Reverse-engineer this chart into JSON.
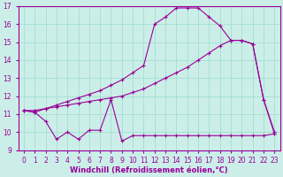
{
  "background_color": "#cceee8",
  "line_color": "#990099",
  "xlabel": "Windchill (Refroidissement éolien,°C)",
  "xlim": [
    -0.5,
    23.5
  ],
  "ylim": [
    9,
    17
  ],
  "yticks": [
    9,
    10,
    11,
    12,
    13,
    14,
    15,
    16,
    17
  ],
  "xticks": [
    0,
    1,
    2,
    3,
    4,
    5,
    6,
    7,
    8,
    9,
    10,
    11,
    12,
    13,
    14,
    15,
    16,
    17,
    18,
    19,
    20,
    21,
    22,
    23
  ],
  "grid_color": "#99ddcc",
  "series1_x": [
    0,
    1,
    2,
    3,
    4,
    5,
    6,
    7,
    8,
    9,
    10,
    11,
    12,
    13,
    14,
    15,
    16,
    17,
    18,
    19,
    20,
    21,
    22,
    23
  ],
  "series1_y": [
    11.2,
    11.1,
    10.6,
    9.6,
    10.0,
    9.6,
    10.1,
    10.1,
    11.8,
    9.5,
    9.8,
    9.8,
    9.8,
    9.8,
    9.8,
    9.8,
    9.8,
    9.8,
    9.8,
    9.8,
    9.8,
    9.8,
    9.8,
    9.9
  ],
  "series2_x": [
    0,
    1,
    2,
    3,
    4,
    5,
    6,
    7,
    8,
    9,
    10,
    11,
    12,
    13,
    14,
    15,
    16,
    17,
    18,
    19,
    20,
    21,
    22,
    23
  ],
  "series2_y": [
    11.2,
    11.1,
    11.3,
    11.4,
    11.5,
    11.6,
    11.7,
    11.8,
    11.9,
    12.0,
    12.2,
    12.4,
    12.7,
    13.0,
    13.3,
    13.6,
    14.0,
    14.4,
    14.8,
    15.1,
    15.1,
    14.9,
    11.8,
    10.0
  ],
  "series3_x": [
    0,
    1,
    2,
    3,
    4,
    5,
    6,
    7,
    8,
    9,
    10,
    11,
    12,
    13,
    14,
    15,
    16,
    17,
    18,
    19,
    20,
    21,
    22,
    23
  ],
  "series3_y": [
    11.2,
    11.2,
    11.3,
    11.5,
    11.7,
    11.9,
    12.1,
    12.3,
    12.6,
    12.9,
    13.3,
    13.7,
    16.0,
    16.4,
    16.9,
    16.9,
    16.9,
    16.4,
    15.9,
    15.1,
    15.1,
    14.9,
    11.8,
    9.9
  ]
}
